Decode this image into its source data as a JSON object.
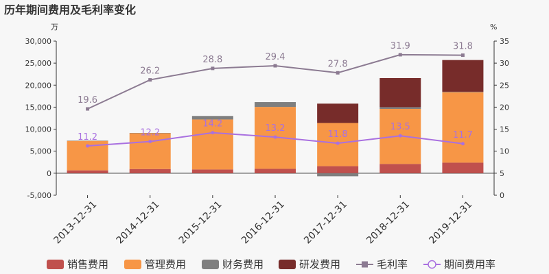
{
  "chart_data": {
    "type": "bar",
    "title": "历年期间费用及毛利率变化",
    "y_left_unit": "万",
    "y_right_unit": "%",
    "categories": [
      "2013-12-31",
      "2014-12-31",
      "2015-12-31",
      "2016-12-31",
      "2017-12-31",
      "2018-12-31",
      "2019-12-31"
    ],
    "ylim_left": [
      -5000,
      30000
    ],
    "ylim_right": [
      0,
      35
    ],
    "yticks_left": [
      "-5,000",
      "0",
      "5,000",
      "10,000",
      "15,000",
      "20,000",
      "25,000",
      "30,000"
    ],
    "yticks_right": [
      "0",
      "5",
      "10",
      "15",
      "20",
      "25",
      "30",
      "35"
    ],
    "stacked": true,
    "series": [
      {
        "name": "销售费用",
        "kind": "bar",
        "color": "#c0504d",
        "values": [
          650,
          950,
          850,
          1000,
          1600,
          2100,
          2400
        ]
      },
      {
        "name": "管理费用",
        "kind": "bar",
        "color": "#f79646",
        "values": [
          6700,
          8150,
          11350,
          14050,
          9800,
          12500,
          16000
        ]
      },
      {
        "name": "财务费用",
        "kind": "bar",
        "color": "#7f7f7f",
        "values": [
          50,
          50,
          800,
          1100,
          -700,
          400,
          100
        ]
      },
      {
        "name": "研发费用",
        "kind": "bar",
        "color": "#772c2a",
        "values": [
          0,
          0,
          0,
          0,
          4400,
          6600,
          7200
        ]
      },
      {
        "name": "毛利率",
        "kind": "line",
        "axis": "right",
        "color": "#8c7b92",
        "values": [
          19.6,
          26.2,
          28.8,
          29.4,
          27.8,
          31.9,
          31.8
        ]
      },
      {
        "name": "期间费用率",
        "kind": "line",
        "axis": "right",
        "color": "#a970e0",
        "values": [
          11.2,
          12.2,
          14.2,
          13.2,
          11.8,
          13.5,
          11.7
        ]
      }
    ],
    "legend_position": "bottom",
    "grid": false
  }
}
